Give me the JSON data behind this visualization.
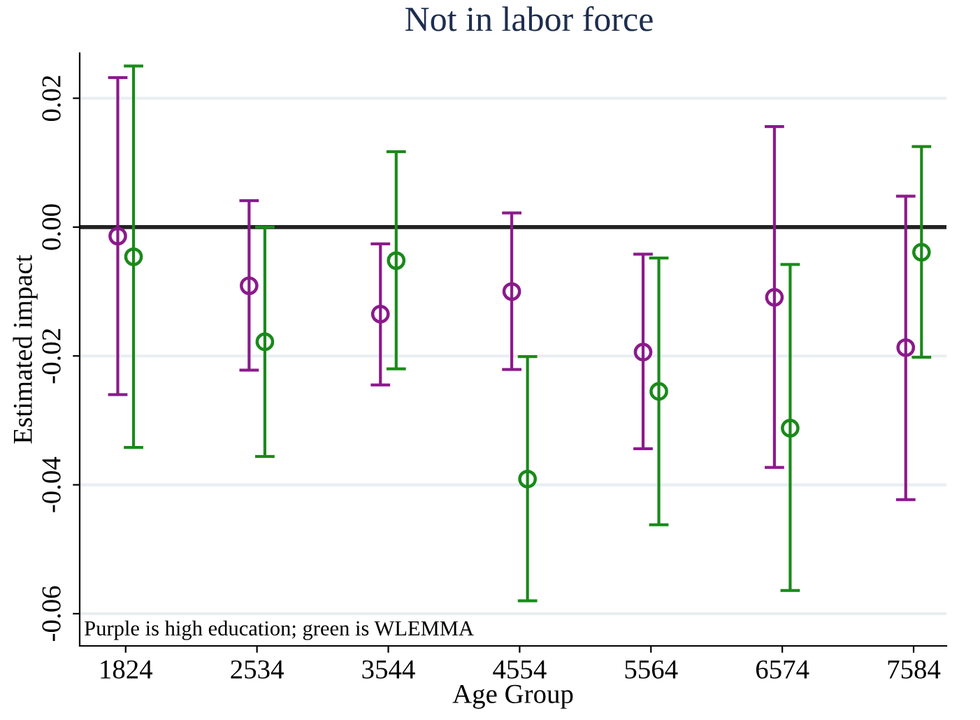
{
  "chart_data": {
    "type": "scatter",
    "title": "Not in labor force",
    "xlabel": "Age Group",
    "ylabel": "Estimated impact",
    "annotations": [
      "Purple is high education; green is WLEMMA"
    ],
    "categories": [
      "1824",
      "2534",
      "3544",
      "4554",
      "5564",
      "6574",
      "7584"
    ],
    "ylim": [
      -0.065,
      0.027
    ],
    "yticks": [
      {
        "value": -0.06,
        "label": "-0.06"
      },
      {
        "value": -0.04,
        "label": "-0.04"
      },
      {
        "value": -0.02,
        "label": "-0.02"
      },
      {
        "value": 0,
        "label": "0.00"
      },
      {
        "value": 0.02,
        "label": "0.02"
      }
    ],
    "grid": "y",
    "marker": "circle",
    "legend": false,
    "ref_lines": [
      {
        "axis": "y",
        "value": 0,
        "color": "#222222"
      }
    ],
    "series": [
      {
        "color": "#8b1a8b",
        "values": [
          -0.0014,
          -0.0091,
          -0.0135,
          -0.01,
          -0.0194,
          -0.0109,
          -0.0187
        ],
        "errors": [
          [
            -0.026,
            0.0232
          ],
          [
            -0.0222,
            0.0041
          ],
          [
            -0.0245,
            -0.0026
          ],
          [
            -0.0221,
            0.0022
          ],
          [
            -0.0344,
            -0.0042
          ],
          [
            -0.0373,
            0.0156
          ],
          [
            -0.0423,
            0.0048
          ]
        ]
      },
      {
        "color": "#1a8a1a",
        "values": [
          -0.0046,
          -0.0178,
          -0.0052,
          -0.0391,
          -0.0255,
          -0.0312,
          -0.0039
        ],
        "errors": [
          [
            -0.0342,
            0.025
          ],
          [
            -0.0356,
            0.0
          ],
          [
            -0.022,
            0.0117
          ],
          [
            -0.058,
            -0.0201
          ],
          [
            -0.0462,
            -0.0048
          ],
          [
            -0.0564,
            -0.0058
          ],
          [
            -0.0202,
            0.0125
          ]
        ]
      }
    ]
  }
}
